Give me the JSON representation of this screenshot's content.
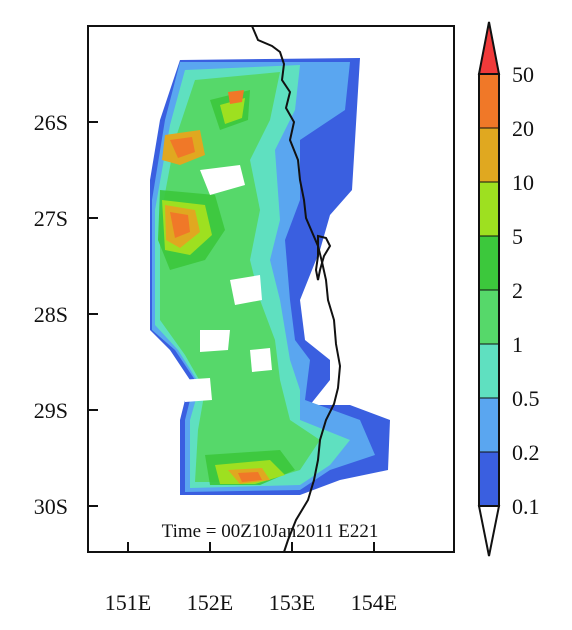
{
  "map": {
    "lat_labels": [
      "26S",
      "27S",
      "28S",
      "29S",
      "30S"
    ],
    "lon_labels": [
      "151E",
      "152E",
      "153E",
      "154E"
    ],
    "annotation": "Time = 00Z10Jan2011 E221"
  },
  "colorbar": {
    "levels": [
      {
        "label": "0.1",
        "color": "#3a5fe0"
      },
      {
        "label": "0.2",
        "color": "#5aa6f0"
      },
      {
        "label": "0.5",
        "color": "#5fe0c0"
      },
      {
        "label": "1",
        "color": "#56d86a"
      },
      {
        "label": "2",
        "color": "#3cc83c"
      },
      {
        "label": "5",
        "color": "#9ee020"
      },
      {
        "label": "10",
        "color": "#e0a820"
      },
      {
        "label": "20",
        "color": "#f07828"
      },
      {
        "label": "50",
        "color": "#f03a3a"
      }
    ],
    "under_color": "#ffffff",
    "over_color": "#f03a3a"
  },
  "colors": {
    "background": "#ffffff",
    "frame": "#111111",
    "coastline": "#111111"
  }
}
